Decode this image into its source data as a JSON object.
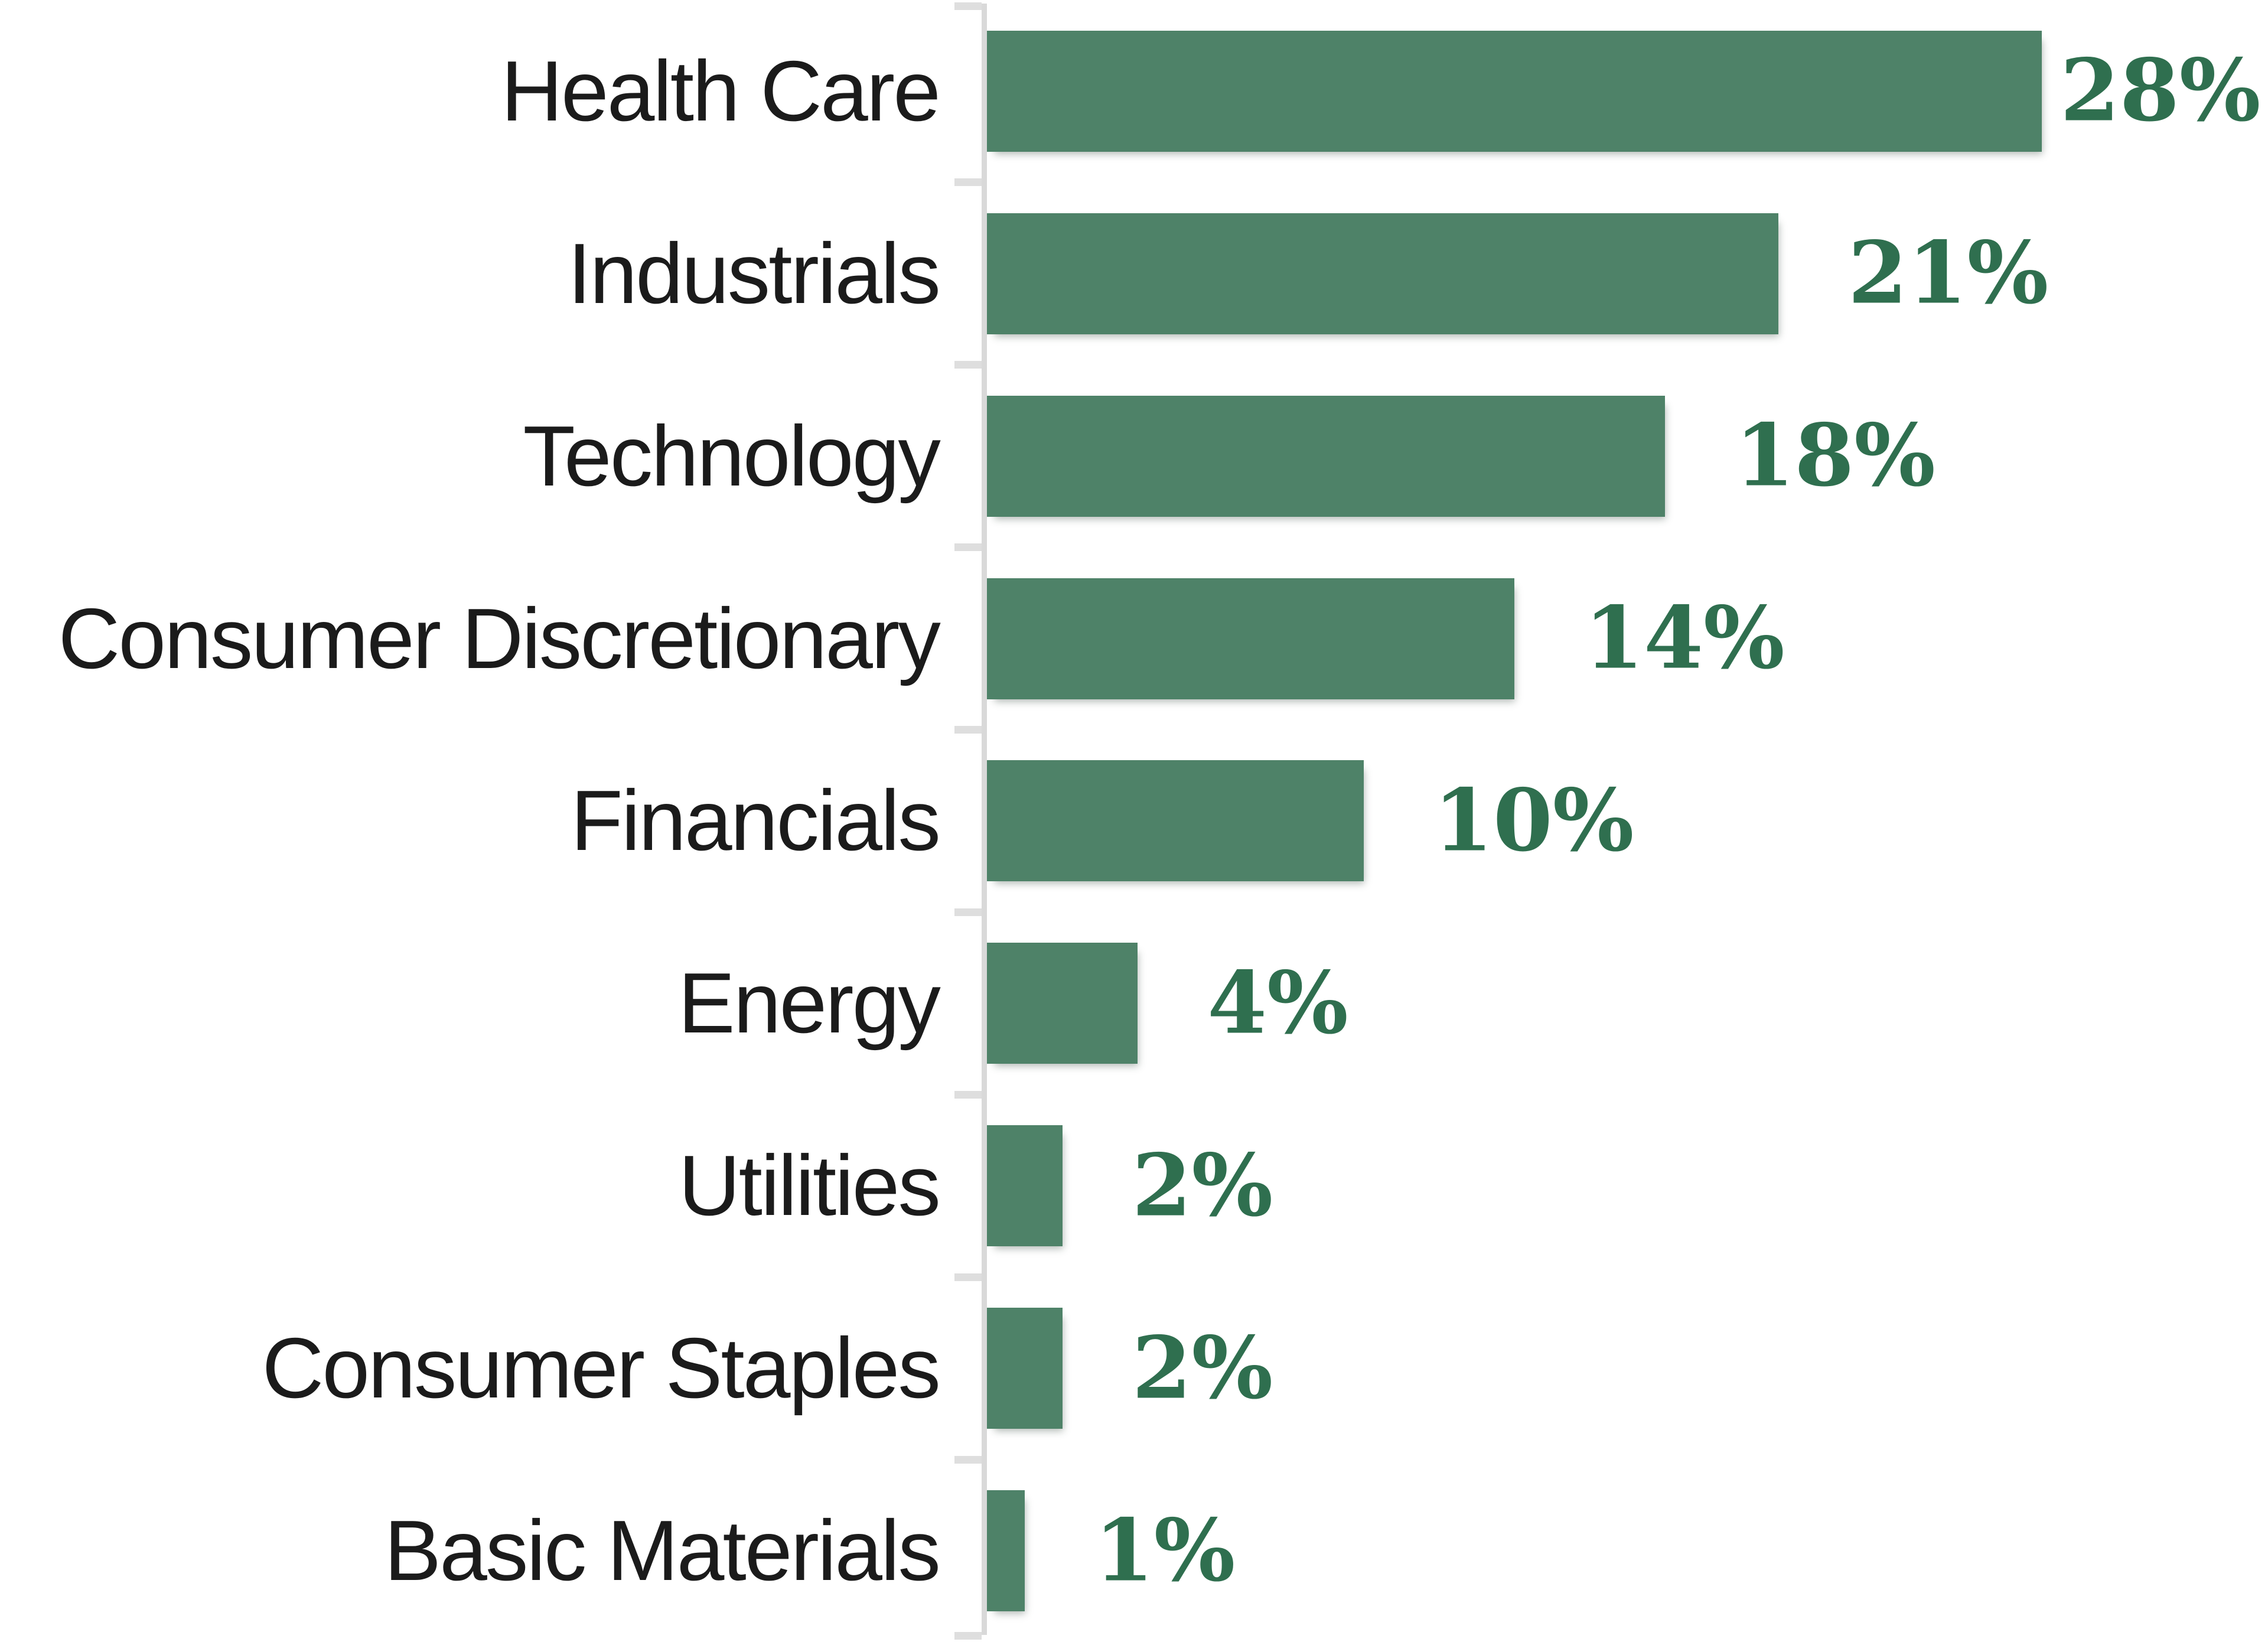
{
  "chart_data": {
    "type": "bar",
    "orientation": "horizontal",
    "title": "",
    "xlabel": "",
    "ylabel": "",
    "categories": [
      "Health Care",
      "Industrials",
      "Technology",
      "Consumer Discretionary",
      "Financials",
      "Energy",
      "Utilities",
      "Consumer Staples",
      "Basic Materials"
    ],
    "values": [
      28,
      21,
      18,
      14,
      10,
      4,
      2,
      2,
      1
    ],
    "value_labels": [
      "28%",
      "21%",
      "18%",
      "14%",
      "10%",
      "4%",
      "2%",
      "2%",
      "1%"
    ],
    "xlim": [
      0,
      34
    ],
    "grid": false,
    "legend": false,
    "colors": {
      "bar_fill": "#4E8268",
      "value_label": "#2F6F4F",
      "category_label": "#1b1b1b",
      "axis_line": "#d9d9d9",
      "tick": "#dedede",
      "background": "#ffffff"
    }
  }
}
